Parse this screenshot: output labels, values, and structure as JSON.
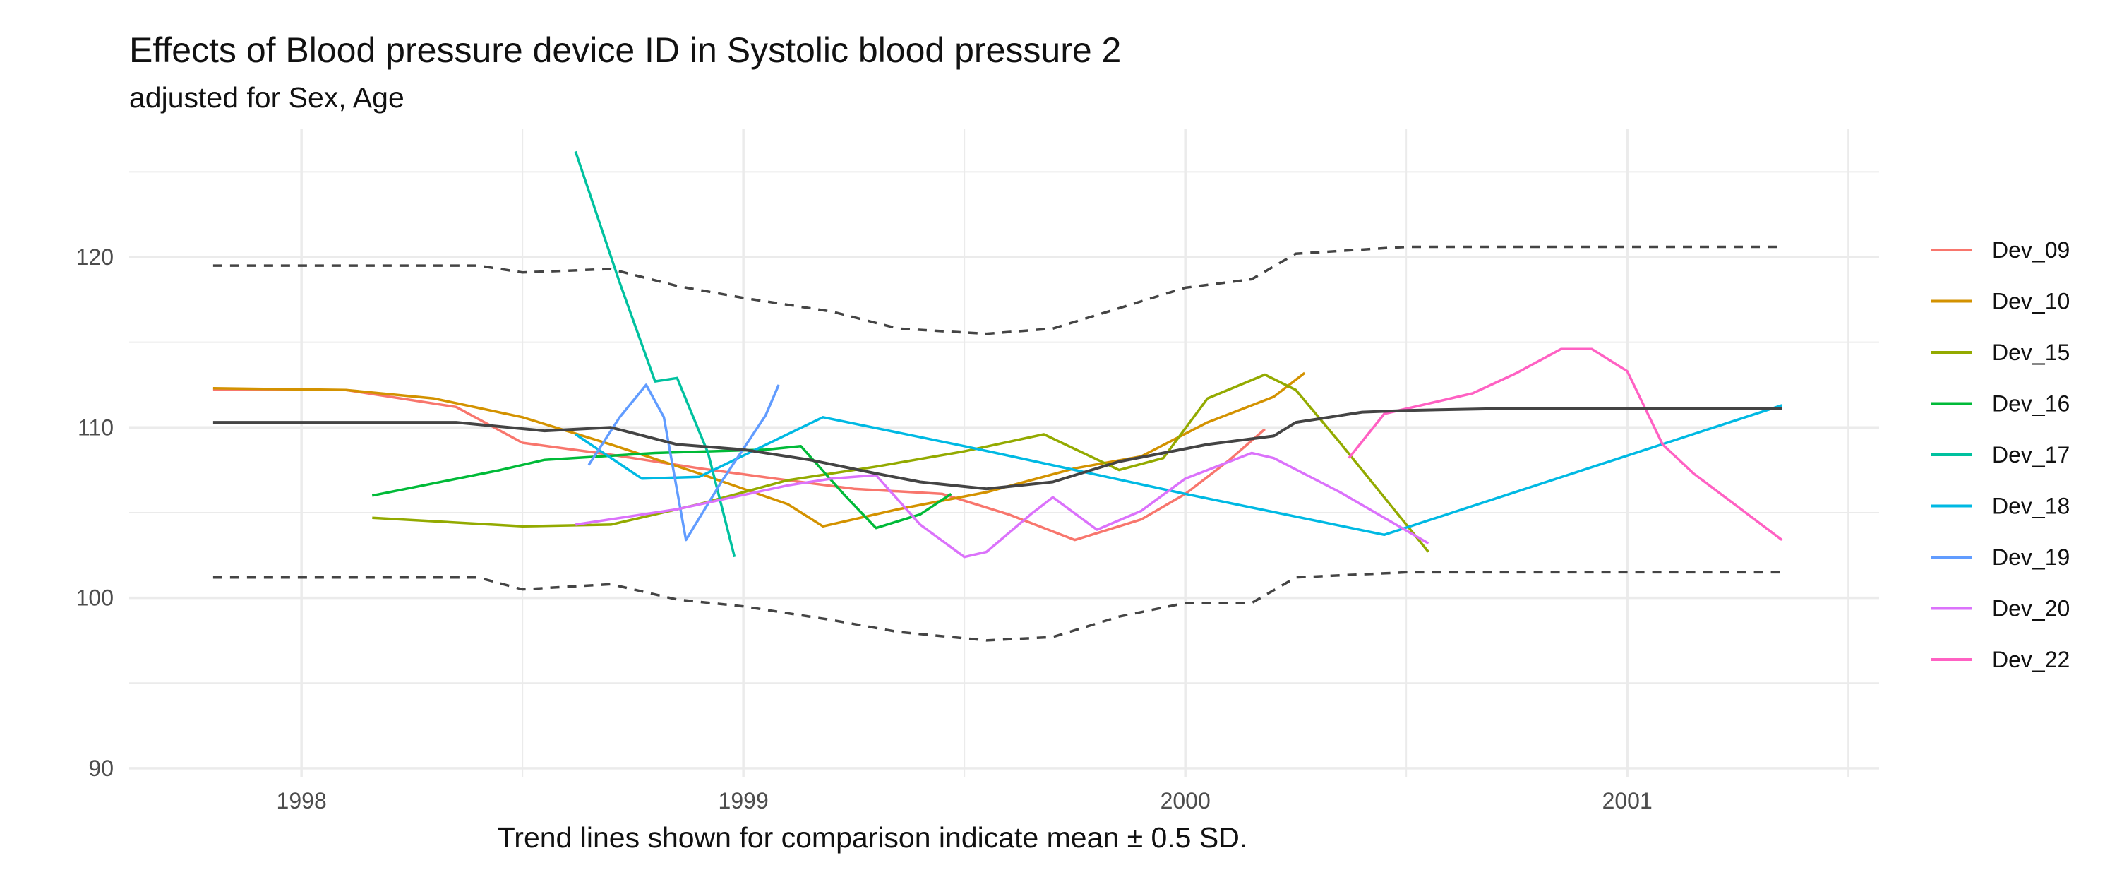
{
  "chart_data": {
    "type": "line",
    "title": "Effects of Blood pressure device ID in Systolic blood pressure 2",
    "subtitle": "adjusted for Sex, Age",
    "caption": "Trend lines shown for comparison indicate mean ± 0.5 SD.",
    "xlabel": "",
    "ylabel": "",
    "xlim": [
      1997.61,
      2001.57
    ],
    "ylim": [
      89.5,
      127.5
    ],
    "x_ticks": [
      1998,
      1999,
      2000,
      2001
    ],
    "x_tick_labels": [
      "1998",
      "1999",
      "2000",
      "2001"
    ],
    "y_ticks": [
      90,
      100,
      110,
      120
    ],
    "y_tick_labels": [
      "90",
      "100",
      "110",
      "120"
    ],
    "grid": true,
    "legend_position": "right",
    "trend": {
      "mean": [
        [
          1997.8,
          110.3
        ],
        [
          1998.1,
          110.3
        ],
        [
          1998.35,
          110.3
        ],
        [
          1998.55,
          109.8
        ],
        [
          1998.7,
          110.0
        ],
        [
          1998.85,
          109.0
        ],
        [
          1999.0,
          108.7
        ],
        [
          1999.15,
          108.1
        ],
        [
          1999.3,
          107.3
        ],
        [
          1999.4,
          106.8
        ],
        [
          1999.55,
          106.4
        ],
        [
          1999.7,
          106.8
        ],
        [
          1999.85,
          108.0
        ],
        [
          1999.95,
          108.5
        ],
        [
          2000.05,
          109.0
        ],
        [
          2000.2,
          109.5
        ],
        [
          2000.25,
          110.3
        ],
        [
          2000.4,
          110.9
        ],
        [
          2000.5,
          111.0
        ],
        [
          2000.7,
          111.1
        ],
        [
          2001.0,
          111.1
        ],
        [
          2001.35,
          111.1
        ]
      ],
      "upper": [
        [
          1997.8,
          119.5
        ],
        [
          1998.4,
          119.5
        ],
        [
          1998.5,
          119.1
        ],
        [
          1998.7,
          119.3
        ],
        [
          1998.85,
          118.3
        ],
        [
          1999.0,
          117.6
        ],
        [
          1999.2,
          116.8
        ],
        [
          1999.35,
          115.8
        ],
        [
          1999.55,
          115.5
        ],
        [
          1999.7,
          115.8
        ],
        [
          1999.85,
          117.0
        ],
        [
          2000.0,
          118.2
        ],
        [
          2000.15,
          118.7
        ],
        [
          2000.25,
          120.2
        ],
        [
          2000.5,
          120.6
        ],
        [
          2001.0,
          120.6
        ],
        [
          2001.35,
          120.6
        ]
      ],
      "lower": [
        [
          1997.8,
          101.2
        ],
        [
          1998.4,
          101.2
        ],
        [
          1998.5,
          100.5
        ],
        [
          1998.7,
          100.8
        ],
        [
          1998.85,
          99.9
        ],
        [
          1999.0,
          99.5
        ],
        [
          1999.2,
          98.7
        ],
        [
          1999.35,
          98.0
        ],
        [
          1999.55,
          97.5
        ],
        [
          1999.7,
          97.7
        ],
        [
          1999.85,
          98.9
        ],
        [
          2000.0,
          99.7
        ],
        [
          2000.15,
          99.7
        ],
        [
          2000.25,
          101.2
        ],
        [
          2000.5,
          101.5
        ],
        [
          2001.0,
          101.5
        ],
        [
          2001.35,
          101.5
        ]
      ]
    },
    "series": [
      {
        "name": "Dev_09",
        "color": "#F8766D",
        "points": [
          [
            1997.8,
            112.2
          ],
          [
            1998.1,
            112.2
          ],
          [
            1998.35,
            111.2
          ],
          [
            1998.5,
            109.1
          ],
          [
            1998.7,
            108.4
          ],
          [
            1998.9,
            107.6
          ],
          [
            1999.1,
            106.9
          ],
          [
            1999.25,
            106.4
          ],
          [
            1999.45,
            106.1
          ],
          [
            1999.6,
            104.9
          ],
          [
            1999.75,
            103.4
          ],
          [
            1999.9,
            104.6
          ],
          [
            2000.0,
            106.1
          ],
          [
            2000.1,
            108.1
          ],
          [
            2000.18,
            109.9
          ]
        ]
      },
      {
        "name": "Dev_10",
        "color": "#D39200",
        "points": [
          [
            1997.8,
            112.3
          ],
          [
            1998.1,
            112.2
          ],
          [
            1998.3,
            111.7
          ],
          [
            1998.5,
            110.6
          ],
          [
            1998.7,
            109.0
          ],
          [
            1998.9,
            107.3
          ],
          [
            1999.1,
            105.5
          ],
          [
            1999.18,
            104.2
          ],
          [
            1999.35,
            105.2
          ],
          [
            1999.55,
            106.2
          ],
          [
            1999.75,
            107.6
          ],
          [
            1999.9,
            108.3
          ],
          [
            2000.05,
            110.3
          ],
          [
            2000.2,
            111.8
          ],
          [
            2000.27,
            113.2
          ]
        ]
      },
      {
        "name": "Dev_15",
        "color": "#93AA00",
        "points": [
          [
            1998.16,
            104.7
          ],
          [
            1998.5,
            104.2
          ],
          [
            1998.7,
            104.3
          ],
          [
            1998.9,
            105.5
          ],
          [
            1999.1,
            106.9
          ],
          [
            1999.3,
            107.7
          ],
          [
            1999.5,
            108.6
          ],
          [
            1999.68,
            109.6
          ],
          [
            1999.85,
            107.5
          ],
          [
            1999.95,
            108.2
          ],
          [
            2000.05,
            111.7
          ],
          [
            2000.18,
            113.1
          ],
          [
            2000.25,
            112.2
          ],
          [
            2000.35,
            109.1
          ],
          [
            2000.55,
            102.7
          ]
        ]
      },
      {
        "name": "Dev_16",
        "color": "#00BA38",
        "points": [
          [
            1998.16,
            106.0
          ],
          [
            1998.45,
            107.5
          ],
          [
            1998.55,
            108.1
          ],
          [
            1998.8,
            108.5
          ],
          [
            1999.05,
            108.7
          ],
          [
            1999.13,
            108.9
          ],
          [
            1999.23,
            106.0
          ],
          [
            1999.3,
            104.1
          ],
          [
            1999.4,
            104.9
          ],
          [
            1999.47,
            106.1
          ]
        ]
      },
      {
        "name": "Dev_17",
        "color": "#00C19F",
        "points": [
          [
            1998.62,
            126.2
          ],
          [
            1998.72,
            118.5
          ],
          [
            1998.8,
            112.7
          ],
          [
            1998.85,
            112.9
          ],
          [
            1998.92,
            108.5
          ],
          [
            1998.98,
            102.4
          ]
        ]
      },
      {
        "name": "Dev_18",
        "color": "#00B9E3",
        "points": [
          [
            1998.62,
            109.6
          ],
          [
            1998.77,
            107.0
          ],
          [
            1998.9,
            107.1
          ],
          [
            1999.18,
            110.6
          ],
          [
            1999.5,
            108.9
          ],
          [
            2000.0,
            106.1
          ],
          [
            2000.45,
            103.7
          ],
          [
            2001.35,
            111.3
          ]
        ]
      },
      {
        "name": "Dev_19",
        "color": "#619CFF",
        "points": [
          [
            1998.65,
            107.8
          ],
          [
            1998.72,
            110.6
          ],
          [
            1998.78,
            112.5
          ],
          [
            1998.82,
            110.6
          ],
          [
            1998.87,
            103.4
          ],
          [
            1998.95,
            106.8
          ],
          [
            1999.05,
            110.7
          ],
          [
            1999.08,
            112.5
          ]
        ]
      },
      {
        "name": "Dev_20",
        "color": "#DB72FB",
        "points": [
          [
            1998.62,
            104.3
          ],
          [
            1998.85,
            105.2
          ],
          [
            1999.1,
            106.6
          ],
          [
            1999.2,
            107.0
          ],
          [
            1999.3,
            107.2
          ],
          [
            1999.4,
            104.3
          ],
          [
            1999.5,
            102.4
          ],
          [
            1999.55,
            102.7
          ],
          [
            1999.65,
            104.9
          ],
          [
            1999.7,
            105.9
          ],
          [
            1999.8,
            104.0
          ],
          [
            1999.9,
            105.1
          ],
          [
            2000.0,
            107.0
          ],
          [
            2000.15,
            108.5
          ],
          [
            2000.2,
            108.2
          ],
          [
            2000.35,
            106.2
          ],
          [
            2000.55,
            103.2
          ]
        ]
      },
      {
        "name": "Dev_22",
        "color": "#FF61C3",
        "points": [
          [
            2000.37,
            108.2
          ],
          [
            2000.45,
            110.8
          ],
          [
            2000.65,
            112.0
          ],
          [
            2000.75,
            113.2
          ],
          [
            2000.85,
            114.6
          ],
          [
            2000.92,
            114.6
          ],
          [
            2001.0,
            113.3
          ],
          [
            2001.08,
            109.0
          ],
          [
            2001.15,
            107.3
          ],
          [
            2001.35,
            103.4
          ]
        ]
      }
    ]
  }
}
